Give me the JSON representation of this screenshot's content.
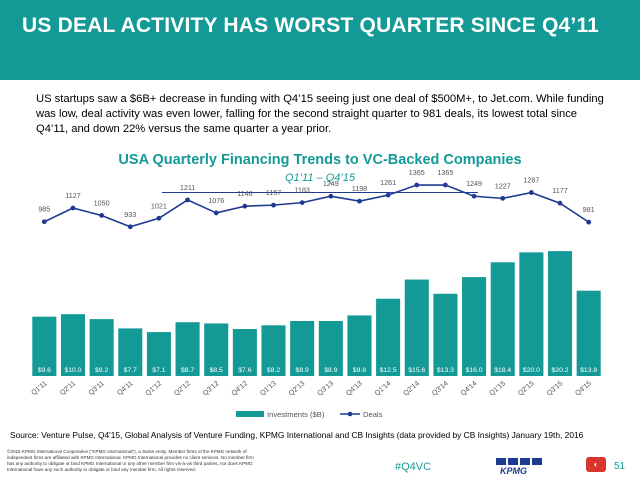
{
  "banner": {
    "title": "US DEAL ACTIVITY HAS WORST QUARTER SINCE Q4’11",
    "color": "#139a96"
  },
  "intro_text": "US startups saw a $6B+ decrease in funding with Q4’15 seeing just one deal of $500M+, to Jet.com. While funding was low, deal activity was even lower, falling for the second straight quarter to 981 deals, its lowest total since Q4’11, and down 22% versus the same quarter a year prior.",
  "chart_data": {
    "type": "bar",
    "title": "USA Quarterly Financing Trends to VC-Backed Companies",
    "subtitle": "Q1’11 – Q4’15",
    "categories": [
      "Q1'11",
      "Q2'11",
      "Q3'11",
      "Q4'11",
      "Q1'12",
      "Q2'12",
      "Q3'12",
      "Q4'12",
      "Q1'13",
      "Q2'13",
      "Q3'13",
      "Q4'13",
      "Q1'14",
      "Q2'14",
      "Q3'14",
      "Q4'14",
      "Q1'15",
      "Q2'15",
      "Q3'15",
      "Q4'15"
    ],
    "series": [
      {
        "name": "Investments ($B)",
        "type": "bar",
        "color": "#139a96",
        "values": [
          9.6,
          10.0,
          9.2,
          7.7,
          7.1,
          8.7,
          8.5,
          7.6,
          8.2,
          8.9,
          8.9,
          9.8,
          12.5,
          15.6,
          13.3,
          16.0,
          18.4,
          20.0,
          20.2,
          13.8
        ],
        "labels": [
          "$9.6",
          "$10.0",
          "$9.2",
          "$7.7",
          "$7.1",
          "$8.7",
          "$8.5",
          "$7.6",
          "$8.2",
          "$8.9",
          "$8.9",
          "$9.8",
          "$12.5",
          "$15.6",
          "$13.3",
          "$16.0",
          "$18.4",
          "$20.0",
          "$20.2",
          "$13.8"
        ]
      },
      {
        "name": "Deals",
        "type": "line",
        "color": "#1f3a93",
        "values": [
          985,
          1127,
          1050,
          933,
          1021,
          1211,
          1076,
          1146,
          1157,
          1183,
          1249,
          1198,
          1261,
          1365,
          1365,
          1249,
          1227,
          1287,
          1177,
          981
        ]
      }
    ],
    "bar_ylim": [
      0,
      22
    ],
    "line_ylim": [
      -2000,
      1500
    ],
    "legend_position": "bottom",
    "grid": false
  },
  "footer": {
    "source": "Source: Venture Pulse, Q4'15, Global Analysis of Venture Funding, KPMG International and CB Insights (data provided by CB Insights) January 19th, 2016",
    "legal": "©2016 KPMG International Cooperative (\"KPMG International\"), a Swiss entity. Member firms of the KPMG network of independent firms are affiliated with KPMG International. KPMG International provides no client services. No member firm has any authority to obligate or bind KPMG International or any other member firm vis-à-vis third parties, nor does KPMG International have any such authority to obligate or bind any member firm. All rights reserved.",
    "hashtag": "#Q4VC",
    "logo_text": "KPMG",
    "page_number": "51",
    "logo_color": "#1f3a93",
    "brand_mark_color": "#d8352f"
  }
}
